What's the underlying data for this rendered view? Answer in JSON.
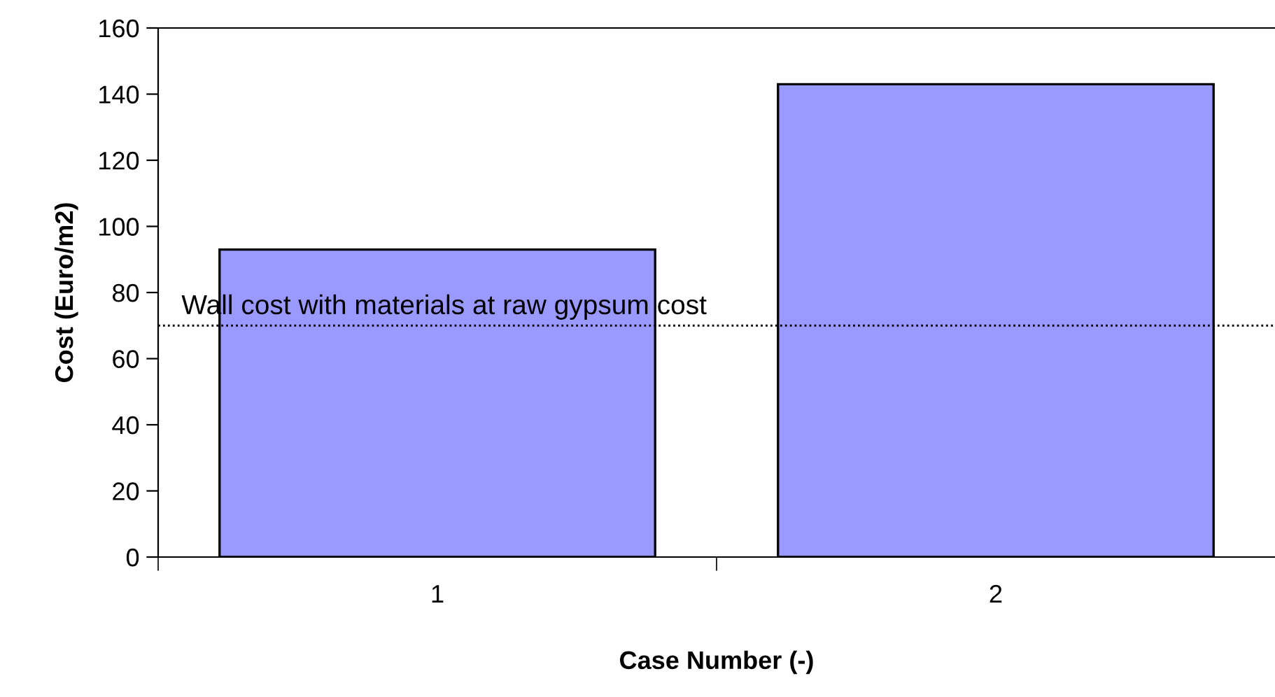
{
  "chart_data": {
    "type": "bar",
    "xlabel": "Case Number (-)",
    "ylabel": "Cost (Euro/m2)",
    "categories": [
      "1",
      "2"
    ],
    "values": [
      93,
      143
    ],
    "color": "#9999ff",
    "ylim": [
      0,
      160
    ],
    "yticks": [
      0,
      20,
      40,
      60,
      80,
      100,
      120,
      140,
      160
    ],
    "grid": false,
    "legend": false,
    "ref_lines": [
      {
        "axis": "y",
        "value": 70,
        "label": "Wall cost with materials at raw gypsum cost",
        "color": "#000000",
        "line_style": "dotted"
      }
    ]
  }
}
